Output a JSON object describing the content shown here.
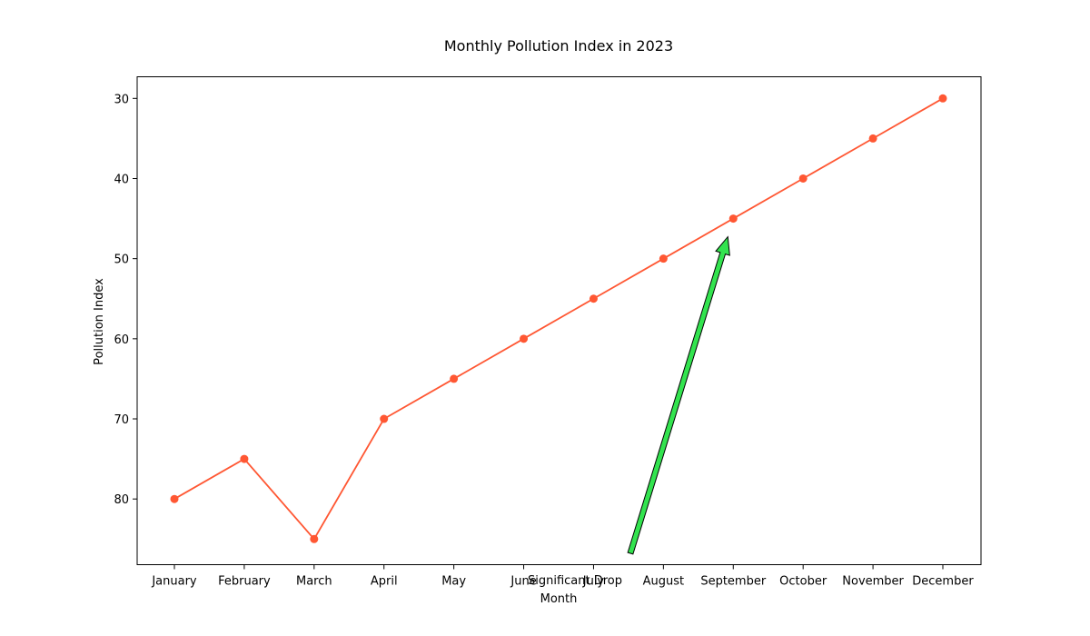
{
  "chart_data": {
    "type": "line",
    "title": "Monthly Pollution Index in 2023",
    "xlabel": "Month",
    "ylabel": "Pollution Index",
    "categories": [
      "January",
      "February",
      "March",
      "April",
      "May",
      "June",
      "July",
      "August",
      "September",
      "October",
      "November",
      "December"
    ],
    "series": [
      {
        "values": [
          80,
          75,
          85,
          70,
          65,
          60,
          55,
          50,
          45,
          40,
          35,
          30
        ]
      }
    ],
    "ylim": [
      27.3,
      88.2
    ],
    "y_inverted": true,
    "yticks": [
      30,
      40,
      50,
      60,
      70,
      80
    ],
    "grid": false,
    "line_color": "#ff5733",
    "annotation": {
      "text": "Significant Drop",
      "target": {
        "x": "September",
        "y": 45
      },
      "arrow_color": "#33e34f"
    }
  }
}
